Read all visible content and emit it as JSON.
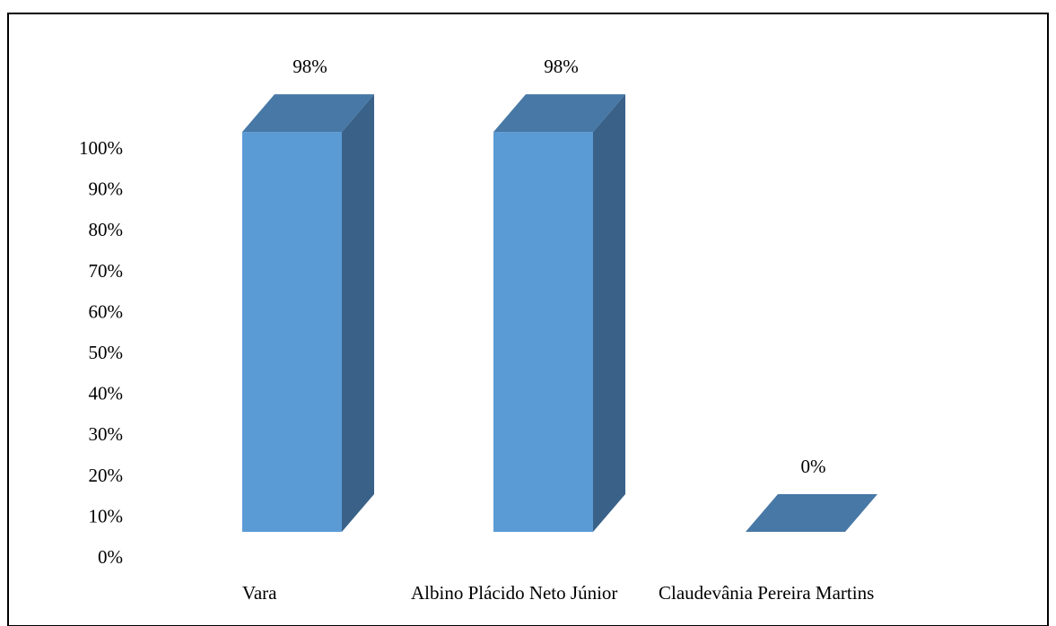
{
  "chart_data": {
    "type": "bar",
    "style": "3d-column",
    "categories": [
      "Vara",
      "Albino Plácido Neto Júnior",
      "Claudevânia Pereira Martins"
    ],
    "values": [
      98,
      98,
      0
    ],
    "data_labels": [
      "98%",
      "98%",
      "0%"
    ],
    "title": "",
    "xlabel": "",
    "ylabel": "",
    "ylim": [
      0,
      100
    ],
    "yticks": [
      "0%",
      "10%",
      "20%",
      "30%",
      "40%",
      "50%",
      "60%",
      "70%",
      "80%",
      "90%",
      "100%"
    ],
    "grid": false,
    "legend": "none",
    "colors": {
      "front": "#5B9BD5",
      "side": "#3A6289",
      "top": "#4778A6",
      "frame": "#000000"
    }
  }
}
